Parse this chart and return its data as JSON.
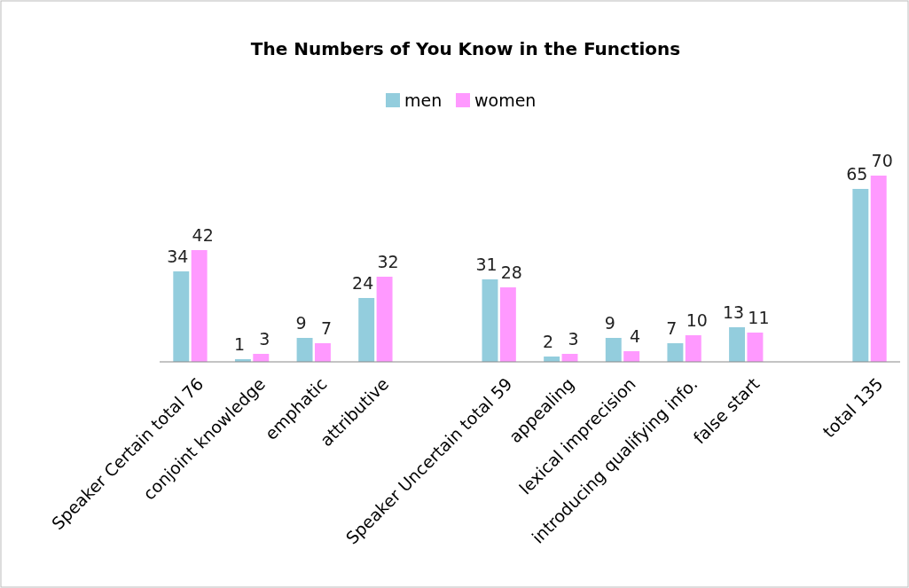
{
  "chart_data": {
    "type": "bar",
    "title": "The Numbers of You Know in the Functions",
    "categories": [
      "Speaker Certain total 76",
      "conjoint knowledge",
      "emphatic",
      "attributive",
      null,
      "Speaker Uncertain total 59",
      "appealing",
      "lexical imprecision",
      "introducing qualifying info.",
      "false start",
      null,
      "total 135"
    ],
    "series": [
      {
        "name": "men",
        "color": "#93cddd",
        "values": [
          34,
          1,
          9,
          24,
          null,
          31,
          2,
          9,
          7,
          13,
          null,
          65
        ]
      },
      {
        "name": "women",
        "color": "#ff99ff",
        "values": [
          42,
          3,
          7,
          32,
          null,
          28,
          3,
          4,
          10,
          11,
          null,
          70
        ]
      }
    ],
    "relative": false,
    "data_labels": true,
    "legend": "top",
    "grid": false
  }
}
